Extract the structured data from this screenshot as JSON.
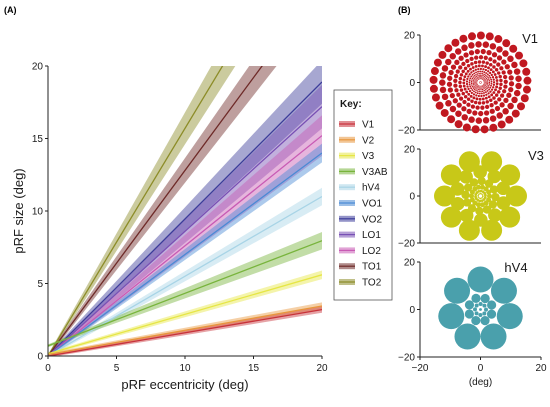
{
  "panels": {
    "a_label": "(A)",
    "b_label": "(B)"
  },
  "chart_data": [
    {
      "type": "line",
      "xlabel": "pRF eccentricity (deg)",
      "ylabel": "pRF size (deg)",
      "xlim": [
        0,
        20
      ],
      "ylim": [
        0,
        20
      ],
      "xticks": [
        0,
        5,
        10,
        15,
        20
      ],
      "yticks": [
        0,
        5,
        10,
        15,
        20
      ],
      "legend_title": "Key:",
      "legend_position": "right",
      "series": [
        {
          "name": "V1",
          "color": "#c8323a",
          "x": [
            0,
            20
          ],
          "y": [
            0.0,
            3.2
          ],
          "band": 0.12
        },
        {
          "name": "V2",
          "color": "#e8963c",
          "x": [
            0,
            20
          ],
          "y": [
            0.1,
            3.45
          ],
          "band": 0.15
        },
        {
          "name": "V3",
          "color": "#e6e645",
          "x": [
            0,
            20
          ],
          "y": [
            0.15,
            5.6
          ],
          "band": 0.2
        },
        {
          "name": "V3AB",
          "color": "#78b43c",
          "x": [
            0,
            20
          ],
          "y": [
            0.7,
            7.95
          ],
          "band": 0.5
        },
        {
          "name": "hV4",
          "color": "#a8d4e6",
          "x": [
            0,
            20
          ],
          "y": [
            0.0,
            11.0
          ],
          "band": 0.5
        },
        {
          "name": "VO1",
          "color": "#4a8ad4",
          "x": [
            0,
            20
          ],
          "y": [
            0.0,
            14.0
          ],
          "band": 0.55
        },
        {
          "name": "VO2",
          "color": "#3c3c9a",
          "x": [
            0,
            20
          ],
          "y": [
            0.0,
            18.9
          ],
          "band": 1.4
        },
        {
          "name": "LO1",
          "color": "#7850b4",
          "x": [
            0,
            20
          ],
          "y": [
            0.0,
            17.2
          ],
          "band": 1.4
        },
        {
          "name": "LO2",
          "color": "#c85ab4",
          "x": [
            0,
            20
          ],
          "y": [
            0.0,
            15.2
          ],
          "band": 1.3
        },
        {
          "name": "TO1",
          "color": "#6e2a28",
          "x": [
            0,
            20
          ],
          "y": [
            0.0,
            25.6
          ],
          "band": 1.5
        },
        {
          "name": "TO2",
          "color": "#8c8c28",
          "x": [
            0,
            20
          ],
          "y": [
            0.0,
            31.4
          ],
          "band": 2.0
        }
      ]
    },
    {
      "type": "scatter",
      "title": "V1",
      "color": "#c01820",
      "xlim": [
        -20,
        20
      ],
      "ylim": [
        -20,
        20
      ],
      "yticks": [
        20,
        0,
        -20
      ]
    },
    {
      "type": "scatter",
      "title": "V3",
      "color": "#c8c818",
      "xlim": [
        -20,
        20
      ],
      "ylim": [
        -20,
        20
      ],
      "yticks": [
        20,
        0,
        -20
      ]
    },
    {
      "type": "scatter",
      "title": "hV4",
      "color": "#4aa0ac",
      "xlim": [
        -20,
        20
      ],
      "ylim": [
        -20,
        20
      ],
      "yticks": [
        20,
        0,
        -20
      ],
      "xticks": [
        -20,
        0,
        20
      ],
      "xlabel": "(deg)"
    }
  ]
}
